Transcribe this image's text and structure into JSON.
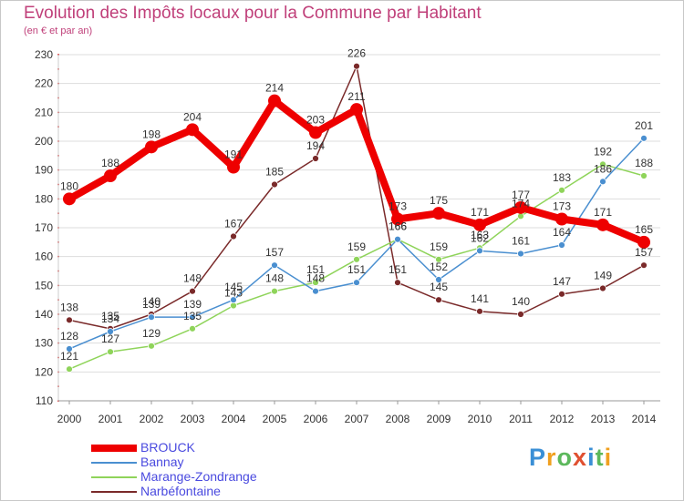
{
  "title": "Evolution des Impôts locaux pour la Commune par Habitant",
  "subtitle": "(en € et par an)",
  "logo": {
    "letters": [
      "P",
      "r",
      "o",
      "x",
      "i",
      "t",
      "i"
    ],
    "colors": [
      "#3a8fd6",
      "#f0a020",
      "#5cb85c",
      "#e05030",
      "#3a8fd6",
      "#5cb85c",
      "#f0a020"
    ]
  },
  "chart_data": {
    "type": "line",
    "title": "Evolution des Impôts locaux pour la Commune par Habitant",
    "ylabel": "(en € et par an)",
    "xlabel": "",
    "x": [
      "2000",
      "2001",
      "2002",
      "2003",
      "2004",
      "2005",
      "2006",
      "2007",
      "2008",
      "2009",
      "2010",
      "2011",
      "2012",
      "2013",
      "2014"
    ],
    "yticks": [
      110,
      120,
      130,
      140,
      150,
      160,
      170,
      180,
      190,
      200,
      210,
      220,
      230
    ],
    "ylim": [
      110,
      230
    ],
    "grid": "horizontal",
    "legend_position": "bottom-left",
    "series": [
      {
        "name": "Narbéfontaine",
        "color": "#7a2a2a",
        "values": [
          138,
          135,
          140,
          148,
          167,
          185,
          194,
          226,
          151,
          145,
          141,
          140,
          147,
          149,
          157
        ]
      },
      {
        "name": "Marange-Zondrange",
        "color": "#8fd45a",
        "values": [
          121,
          127,
          129,
          135,
          143,
          148,
          151,
          159,
          166,
          159,
          163,
          174,
          183,
          192,
          188
        ]
      },
      {
        "name": "Bannay",
        "color": "#4a8fd0",
        "values": [
          128,
          134,
          139,
          139,
          145,
          157,
          148,
          151,
          166,
          152,
          162,
          161,
          164,
          186,
          201
        ]
      },
      {
        "name": "BROUCK",
        "color": "#ee0000",
        "values": [
          180,
          188,
          198,
          204,
          191,
          214,
          203,
          211,
          173,
          175,
          171,
          177,
          173,
          171,
          165
        ]
      }
    ],
    "legend": [
      "BROUCK",
      "Bannay",
      "Marange-Zondrange",
      "Narbéfontaine"
    ]
  }
}
